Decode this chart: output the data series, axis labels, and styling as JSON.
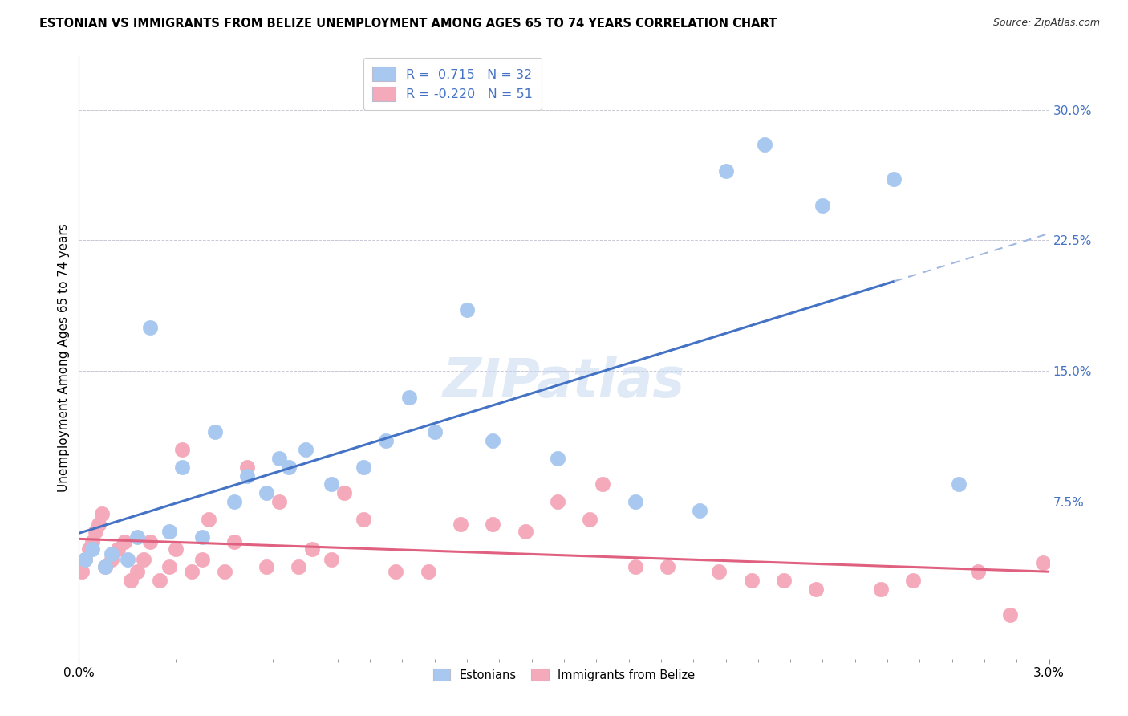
{
  "title": "ESTONIAN VS IMMIGRANTS FROM BELIZE UNEMPLOYMENT AMONG AGES 65 TO 74 YEARS CORRELATION CHART",
  "source": "Source: ZipAtlas.com",
  "ylabel": "Unemployment Among Ages 65 to 74 years",
  "watermark": "ZIPatlas",
  "blue_R": 0.715,
  "blue_N": 32,
  "pink_R": -0.22,
  "pink_N": 51,
  "blue_color": "#A8C8F0",
  "pink_color": "#F4AABB",
  "line_blue": "#4472C4",
  "line_pink": "#E06080",
  "line_blue_dash": "#A0B8E0",
  "xlim": [
    0.0,
    3.0
  ],
  "ylim": [
    -1.5,
    33.0
  ],
  "ytick_vals": [
    0.0,
    7.5,
    15.0,
    22.5,
    30.0
  ],
  "ytick_labels": [
    "",
    "7.5%",
    "15.0%",
    "22.5%",
    "30.0%"
  ],
  "grid_vals": [
    7.5,
    15.0,
    22.5,
    30.0
  ],
  "blue_x": [
    0.02,
    0.04,
    0.08,
    0.1,
    0.15,
    0.18,
    0.22,
    0.28,
    0.32,
    0.38,
    0.42,
    0.48,
    0.52,
    0.58,
    0.62,
    0.65,
    0.7,
    0.78,
    0.88,
    0.95,
    1.02,
    1.1,
    1.2,
    1.28,
    1.48,
    1.72,
    1.92,
    2.0,
    2.12,
    2.3,
    2.52,
    2.72
  ],
  "blue_y": [
    4.2,
    4.8,
    3.8,
    4.5,
    4.2,
    5.5,
    17.5,
    5.8,
    9.5,
    5.5,
    11.5,
    7.5,
    9.0,
    8.0,
    10.0,
    9.5,
    10.5,
    8.5,
    9.5,
    11.0,
    13.5,
    11.5,
    18.5,
    11.0,
    10.0,
    7.5,
    7.0,
    26.5,
    28.0,
    24.5,
    26.0,
    8.5
  ],
  "pink_x": [
    0.01,
    0.02,
    0.03,
    0.04,
    0.05,
    0.06,
    0.07,
    0.08,
    0.1,
    0.12,
    0.14,
    0.16,
    0.18,
    0.2,
    0.22,
    0.25,
    0.28,
    0.3,
    0.32,
    0.35,
    0.38,
    0.4,
    0.45,
    0.48,
    0.52,
    0.58,
    0.62,
    0.68,
    0.72,
    0.78,
    0.82,
    0.88,
    0.98,
    1.08,
    1.18,
    1.28,
    1.38,
    1.48,
    1.58,
    1.62,
    1.72,
    1.82,
    1.98,
    2.08,
    2.18,
    2.28,
    2.48,
    2.58,
    2.78,
    2.88,
    2.98
  ],
  "pink_y": [
    3.5,
    4.2,
    4.8,
    5.2,
    5.8,
    6.2,
    6.8,
    3.8,
    4.2,
    4.8,
    5.2,
    3.0,
    3.5,
    4.2,
    5.2,
    3.0,
    3.8,
    4.8,
    10.5,
    3.5,
    4.2,
    6.5,
    3.5,
    5.2,
    9.5,
    3.8,
    7.5,
    3.8,
    4.8,
    4.2,
    8.0,
    6.5,
    3.5,
    3.5,
    6.2,
    6.2,
    5.8,
    7.5,
    6.5,
    8.5,
    3.8,
    3.8,
    3.5,
    3.0,
    3.0,
    2.5,
    2.5,
    3.0,
    3.5,
    1.0,
    4.0
  ]
}
